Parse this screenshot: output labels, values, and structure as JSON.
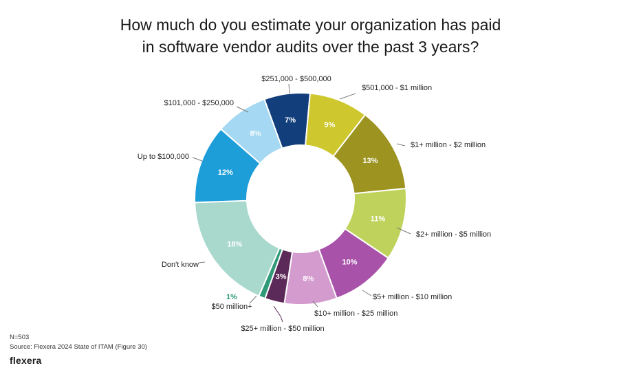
{
  "chart_data": {
    "type": "pie",
    "donut": true,
    "title_lines": [
      "How much do you estimate your organization has paid",
      "in software vendor audits over the past 3 years?"
    ],
    "unit": "%",
    "slices": [
      {
        "label": "$251,000 - $500,000",
        "value": 7,
        "display": "7%",
        "color": "#123f7c"
      },
      {
        "label": "$501,000 - $1 million",
        "value": 9,
        "display": "9%",
        "color": "#cfc72e"
      },
      {
        "label": "$1+ million - $2 million",
        "value": 13,
        "display": "13%",
        "color": "#9c9320"
      },
      {
        "label": "$2+ million - $5 million",
        "value": 11,
        "display": "11%",
        "color": "#bfd35c"
      },
      {
        "label": "$5+ million - $10 million",
        "value": 10,
        "display": "10%",
        "color": "#a852a9"
      },
      {
        "label": "$10+ million - $25 million",
        "value": 8,
        "display": "8%",
        "color": "#d49bcf"
      },
      {
        "label": "$25+ million - $50 million",
        "value": 3,
        "display": "3%",
        "color": "#5c2a58"
      },
      {
        "label": "$50 million+",
        "value": 1,
        "display": "1%",
        "color": "#2f9a78"
      },
      {
        "label": "Don't know",
        "value": 18,
        "display": "18%",
        "color": "#a9d8cc"
      },
      {
        "label": "Up to $100,000",
        "value": 12,
        "display": "12%",
        "color": "#1e9ed9"
      },
      {
        "label": "$101,000 - $250,000",
        "value": 8,
        "display": "8%",
        "color": "#a5d8f2"
      }
    ]
  },
  "footer": {
    "n": "N=503",
    "source": "Source: Flexera 2024 State of ITAM (Figure 30)"
  },
  "brand": "flexera",
  "colors": {
    "leader_line": "#7a7a7a",
    "slice_text_light": "#ffffff",
    "slice_text_dark": "#2f9a78"
  }
}
